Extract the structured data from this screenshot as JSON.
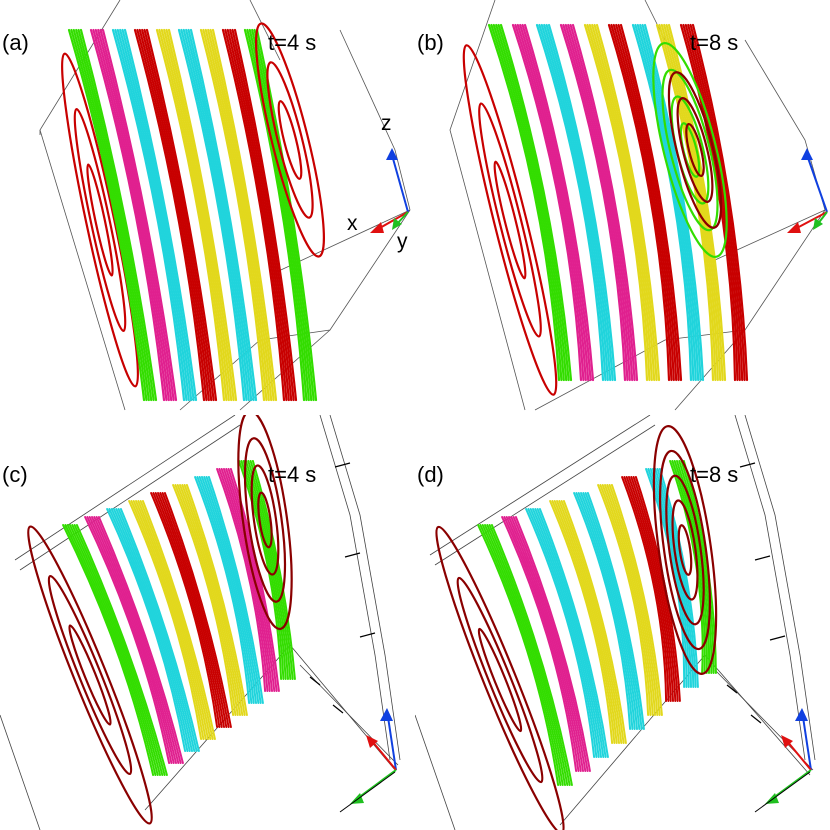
{
  "panels": [
    {
      "label": "(a)",
      "time": "t=4 s"
    },
    {
      "label": "(b)",
      "time": "t=8 s"
    },
    {
      "label": "(c)",
      "time": "t=4 s"
    },
    {
      "label": "(d)",
      "time": "t=8 s"
    }
  ],
  "axes": {
    "x": "x",
    "y": "y",
    "z": "z"
  },
  "colors": {
    "red": "#c80000",
    "dark_red": "#8a0000",
    "green": "#33dd00",
    "magenta": "#e0208f",
    "cyan": "#20d4dc",
    "yellow": "#e2d81c",
    "axis_x": "#e01010",
    "axis_y": "#20c020",
    "axis_z": "#1040e0"
  }
}
